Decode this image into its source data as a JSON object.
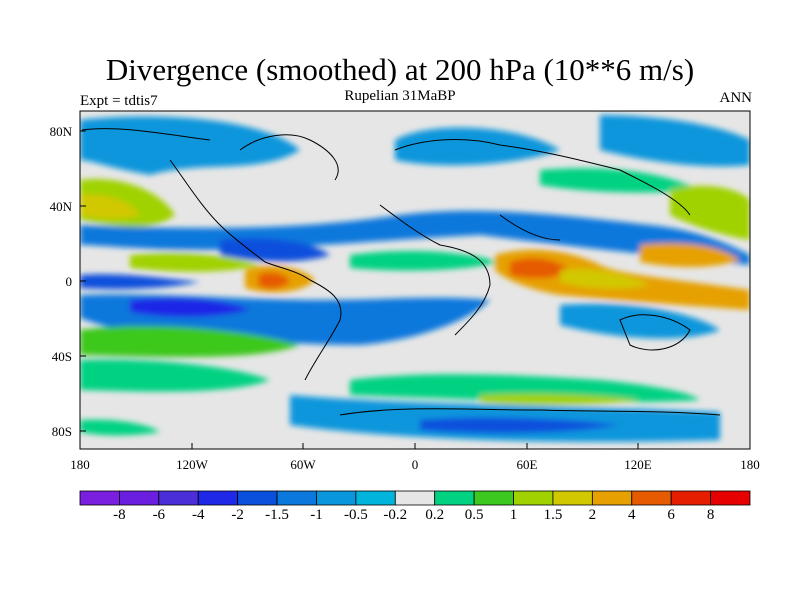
{
  "title": "Divergence (smoothed) at 200 hPa (10**6 m/s)",
  "subtitle": "Rupelian  31MaBP",
  "left_label": "Expt = tdtis7",
  "right_label": "ANN",
  "y_ticks": [
    "80N",
    "40N",
    "0",
    "40S",
    "80S"
  ],
  "x_ticks": [
    "180",
    "120W",
    "60W",
    "0",
    "60E",
    "120E",
    "180"
  ],
  "colorbar": {
    "labels": [
      "-8",
      "-6",
      "-4",
      "-2",
      "-1.5",
      "-1",
      "-0.5",
      "-0.2",
      "0.2",
      "0.5",
      "1",
      "1.5",
      "2",
      "4",
      "6",
      "8"
    ],
    "colors": [
      "#7a1ee0",
      "#6a1ee0",
      "#4b2ed8",
      "#1e28e6",
      "#0a50dc",
      "#0a78dc",
      "#0a96dc",
      "#00b4dc",
      "#e6e6e6",
      "#00d282",
      "#3cc81e",
      "#a0d200",
      "#d2c800",
      "#e6a000",
      "#e65a00",
      "#e61e00",
      "#e60000"
    ]
  }
}
